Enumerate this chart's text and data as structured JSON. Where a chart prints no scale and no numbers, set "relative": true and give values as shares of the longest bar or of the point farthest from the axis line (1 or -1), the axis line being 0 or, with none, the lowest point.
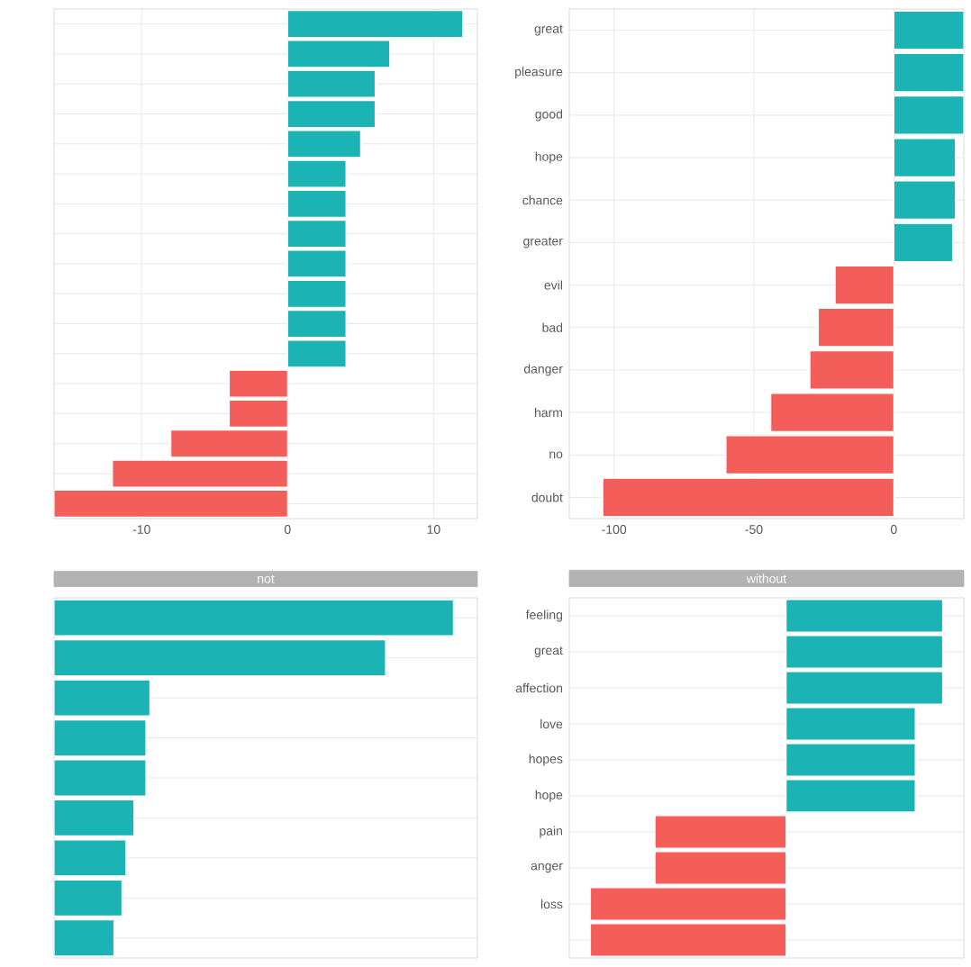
{
  "chart_data": [
    {
      "type": "bar",
      "orientation": "horizontal",
      "categories": [
        null,
        null,
        null,
        null,
        null,
        null,
        null,
        null,
        null,
        null,
        null,
        null,
        null,
        null,
        null,
        null,
        null
      ],
      "values": [
        12,
        7,
        6,
        6,
        5,
        4,
        4,
        4,
        4,
        4,
        4,
        4,
        -4,
        -4,
        -8,
        -12,
        -16
      ],
      "colors": [
        "#1cb3b5",
        "#1cb3b5",
        "#1cb3b5",
        "#1cb3b5",
        "#1cb3b5",
        "#1cb3b5",
        "#1cb3b5",
        "#1cb3b5",
        "#1cb3b5",
        "#1cb3b5",
        "#1cb3b5",
        "#1cb3b5",
        "#f35e5a",
        "#f35e5a",
        "#f35e5a",
        "#f35e5a",
        "#f35e5a"
      ],
      "xlim": [
        -16,
        13
      ],
      "xticks": [
        -10,
        0,
        10
      ],
      "grid": true,
      "tick_labels": "x"
    },
    {
      "type": "bar",
      "orientation": "horizontal",
      "categories": [
        "great",
        "pleasure",
        "good",
        "hope",
        "chance",
        "greater",
        "evil",
        "bad",
        "danger",
        "harm",
        "no",
        "doubt"
      ],
      "values": [
        25,
        25,
        25,
        22,
        22,
        21,
        -21,
        -27,
        -30,
        -44,
        -60,
        -104
      ],
      "colors": [
        "#1cb3b5",
        "#1cb3b5",
        "#1cb3b5",
        "#1cb3b5",
        "#1cb3b5",
        "#1cb3b5",
        "#f35e5a",
        "#f35e5a",
        "#f35e5a",
        "#f35e5a",
        "#f35e5a",
        "#f35e5a"
      ],
      "xlim": [
        -116,
        25
      ],
      "xticks": [
        -100,
        -50,
        0
      ],
      "grid": true
    },
    {
      "type": "bar",
      "orientation": "horizontal",
      "title": "not",
      "relative": true,
      "categories": [
        null,
        null,
        null,
        null,
        null,
        null,
        null,
        null,
        null
      ],
      "values": [
        1,
        0.83,
        0.24,
        0.23,
        0.23,
        0.2,
        0.18,
        0.17,
        0.15
      ],
      "colors": [
        "#1cb3b5",
        "#1cb3b5",
        "#1cb3b5",
        "#1cb3b5",
        "#1cb3b5",
        "#1cb3b5",
        "#1cb3b5",
        "#1cb3b5",
        "#1cb3b5"
      ],
      "grid": "y",
      "tick_labels": false
    },
    {
      "type": "bar",
      "orientation": "horizontal",
      "title": "without",
      "relative": true,
      "categories": [
        "feeling",
        "great",
        "affection",
        "love",
        "hopes",
        "hope",
        "pain",
        "anger",
        "loss",
        null
      ],
      "values": [
        0.8,
        0.8,
        0.8,
        0.66,
        0.66,
        0.66,
        -0.67,
        -0.67,
        -1,
        -1
      ],
      "colors": [
        "#1cb3b5",
        "#1cb3b5",
        "#1cb3b5",
        "#1cb3b5",
        "#1cb3b5",
        "#1cb3b5",
        "#f35e5a",
        "#f35e5a",
        "#f35e5a",
        "#f35e5a"
      ],
      "grid": "y",
      "tick_labels": "y"
    }
  ]
}
